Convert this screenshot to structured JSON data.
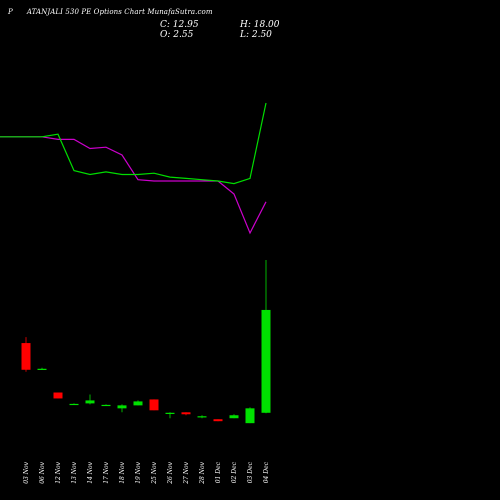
{
  "header": {
    "prefix": "P",
    "symbol_text": "ATANJALI 530  PE Options  Chart MunafaSutra.com",
    "open_label": "O: 2.55",
    "close_label": "C: 12.95",
    "high_label": "H: 18.00",
    "low_label": "L: 2.50"
  },
  "colors": {
    "background": "#000000",
    "up": "#00e000",
    "down": "#ff0000",
    "ma_fast": "#00dd00",
    "ma_slow": "#cc00cc"
  },
  "chart_data": {
    "type": "candlestick",
    "title": "PATANJALI 530  PE Options  Chart MunafaSutra.com",
    "categories": [
      "03 Nov",
      "06 Nov",
      "12 Nov",
      "13 Nov",
      "14 Nov",
      "17 Nov",
      "18 Nov",
      "19 Nov",
      "25 Nov",
      "26 Nov",
      "27 Nov",
      "28 Nov",
      "01 Dec",
      "02 Dec",
      "03 Dec",
      "04 Dec"
    ],
    "candles": [
      {
        "date": "03 Nov",
        "open": 9.6,
        "high": 10.2,
        "low": 6.7,
        "close": 6.9,
        "dir": "down"
      },
      {
        "date": "06 Nov",
        "open": 6.9,
        "high": 7.1,
        "low": 6.9,
        "close": 7.0,
        "dir": "up"
      },
      {
        "date": "12 Nov",
        "open": 4.6,
        "high": 4.6,
        "low": 4.0,
        "close": 4.0,
        "dir": "down"
      },
      {
        "date": "13 Nov",
        "open": 3.4,
        "high": 3.5,
        "low": 3.4,
        "close": 3.45,
        "dir": "up"
      },
      {
        "date": "14 Nov",
        "open": 3.5,
        "high": 4.4,
        "low": 3.4,
        "close": 3.8,
        "dir": "up"
      },
      {
        "date": "17 Nov",
        "open": 3.3,
        "high": 3.4,
        "low": 3.3,
        "close": 3.35,
        "dir": "up"
      },
      {
        "date": "18 Nov",
        "open": 3.0,
        "high": 3.4,
        "low": 2.6,
        "close": 3.3,
        "dir": "up"
      },
      {
        "date": "19 Nov",
        "open": 3.3,
        "high": 3.8,
        "low": 3.3,
        "close": 3.7,
        "dir": "up"
      },
      {
        "date": "25 Nov",
        "open": 3.9,
        "high": 3.9,
        "low": 2.8,
        "close": 2.8,
        "dir": "down"
      },
      {
        "date": "26 Nov",
        "open": 2.5,
        "high": 2.6,
        "low": 2.0,
        "close": 2.55,
        "dir": "up"
      },
      {
        "date": "27 Nov",
        "open": 2.6,
        "high": 2.6,
        "low": 2.3,
        "close": 2.4,
        "dir": "down"
      },
      {
        "date": "28 Nov",
        "open": 2.2,
        "high": 2.3,
        "low": 2.0,
        "close": 2.2,
        "dir": "up"
      },
      {
        "date": "01 Dec",
        "open": 1.9,
        "high": 1.9,
        "low": 1.7,
        "close": 1.7,
        "dir": "down"
      },
      {
        "date": "02 Dec",
        "open": 2.0,
        "high": 2.4,
        "low": 2.0,
        "close": 2.3,
        "dir": "up"
      },
      {
        "date": "03 Dec",
        "open": 1.5,
        "high": 3.1,
        "low": 1.5,
        "close": 3.0,
        "dir": "up"
      },
      {
        "date": "04 Dec",
        "open": 2.55,
        "high": 18.0,
        "low": 2.5,
        "close": 12.95,
        "dir": "up"
      }
    ],
    "ma_fast": [
      7.0,
      7.0,
      7.1,
      5.7,
      5.55,
      5.65,
      5.55,
      5.55,
      5.6,
      5.45,
      5.4,
      5.35,
      5.3,
      5.2,
      5.4,
      8.3
    ],
    "ma_slow": [
      7.0,
      7.0,
      6.9,
      6.9,
      6.55,
      6.6,
      6.3,
      5.35,
      5.3,
      5.3,
      5.3,
      5.3,
      5.3,
      4.8,
      3.3,
      4.5
    ],
    "ylim": [
      0,
      20
    ]
  }
}
